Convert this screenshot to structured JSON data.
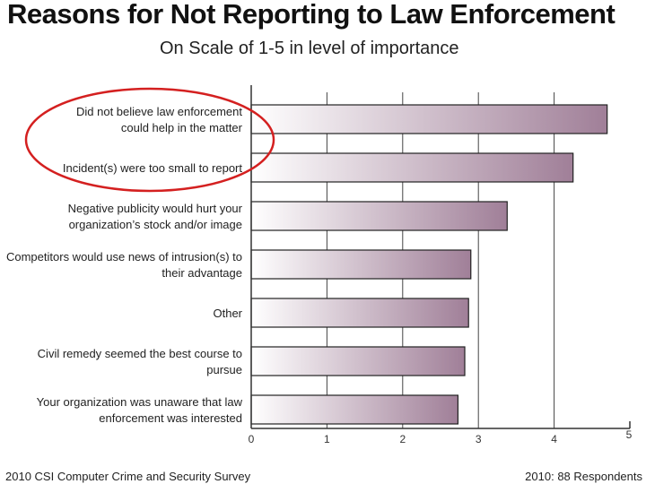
{
  "title": "Reasons for Not Reporting to Law Enforcement",
  "subtitle": "On Scale of 1-5 in level of importance",
  "footer": {
    "source": "2010 CSI Computer Crime and Security Survey",
    "respondents": "2010: 88 Respondents"
  },
  "colors": {
    "bar_start": "#ffffff",
    "bar_end": "#a07f98",
    "bar_stroke": "#222222",
    "axis": "#333333",
    "highlight_ellipse": "#d42020"
  },
  "chart_data": {
    "type": "bar",
    "orientation": "horizontal",
    "categories": [
      [
        "Did not believe law enforcement",
        "could help in the matter"
      ],
      [
        "Incident(s) were too small to report"
      ],
      [
        "Negative publicity would hurt your",
        "organization’s stock and/or image"
      ],
      [
        "Competitors would use news of intrusion(s) to",
        "their advantage"
      ],
      [
        "Other"
      ],
      [
        "Civil remedy seemed the best course to",
        "pursue"
      ],
      [
        "Your organization was unaware that law",
        "enforcement was interested"
      ]
    ],
    "values": [
      4.7,
      4.25,
      3.38,
      2.9,
      2.87,
      2.82,
      2.73
    ],
    "xlim": [
      0,
      5
    ],
    "xticks": [
      "0",
      "1",
      "2",
      "3",
      "4",
      "5"
    ],
    "grid": true,
    "highlighted_categories": [
      0,
      1
    ]
  }
}
